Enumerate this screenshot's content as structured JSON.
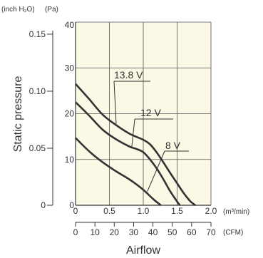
{
  "chart_data": {
    "type": "line",
    "title": "",
    "xlabel": "Airflow",
    "ylabel": "Static pressure",
    "x_unit_metric": "(m³/min)",
    "x_unit_imperial": "(CFM)",
    "y_unit_pa": "(Pa)",
    "y_unit_inch": "(inch H₂O)",
    "xlim": [
      0,
      2.0
    ],
    "ylim": [
      0,
      40
    ],
    "x_ticks": [
      "0",
      "0.5",
      "1.0",
      "1.5",
      "2.0"
    ],
    "y_ticks_pa": [
      "0",
      "10",
      "20",
      "30",
      "40"
    ],
    "y_ticks_inch": [
      "0",
      "0.05",
      "0.10",
      "0.15"
    ],
    "cfm_ticks": [
      "0",
      "10",
      "20",
      "30",
      "40",
      "50",
      "60",
      "70"
    ],
    "grid": true,
    "colors": {
      "plot_background": "#fbf8e6",
      "grid": "#555555",
      "curve": "#333333",
      "text": "#333333"
    },
    "series": [
      {
        "name": "13.8 V",
        "x": [
          0,
          0.2,
          0.4,
          0.6,
          0.8,
          1.0,
          1.1,
          1.2,
          1.3,
          1.4,
          1.5,
          1.6,
          1.7,
          1.77
        ],
        "y": [
          26.5,
          23.2,
          19.8,
          17.5,
          15.6,
          14.3,
          13.3,
          11.5,
          9.3,
          7.0,
          4.8,
          2.6,
          0.8,
          0
        ]
      },
      {
        "name": "12 V",
        "x": [
          0,
          0.2,
          0.4,
          0.6,
          0.8,
          0.9,
          1.0,
          1.1,
          1.2,
          1.3,
          1.4,
          1.5,
          1.54
        ],
        "y": [
          22.5,
          19.6,
          16.5,
          14.4,
          12.8,
          12.3,
          11.6,
          10.0,
          8.0,
          5.6,
          3.0,
          0.8,
          0
        ]
      },
      {
        "name": "8 V",
        "x": [
          0,
          0.2,
          0.4,
          0.6,
          0.8,
          1.0,
          1.15,
          1.26
        ],
        "y": [
          14.7,
          11.8,
          9.4,
          7.4,
          5.6,
          3.4,
          1.3,
          0
        ]
      }
    ]
  }
}
